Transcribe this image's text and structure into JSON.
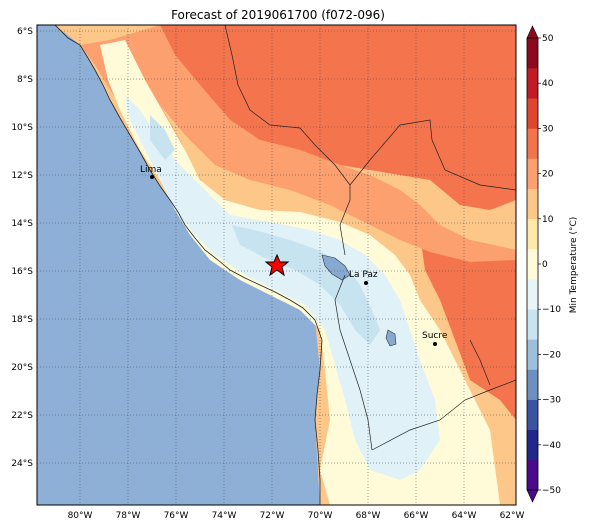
{
  "title": "Forecast of 2019061700 (f072-096)",
  "colorbar": {
    "label": "Min Temperature (°C)",
    "ticks": [
      "50",
      "40",
      "30",
      "20",
      "10",
      "0",
      "−10",
      "−20",
      "−30",
      "−40",
      "−50"
    ],
    "colors": [
      "#4a0a8b",
      "#22278a",
      "#3b53a3",
      "#6f8fc0",
      "#9dbfdc",
      "#c8e4f0",
      "#e8f5f7",
      "#fffbd9",
      "#fee9a9",
      "#fdc78a",
      "#fba06e",
      "#f3734d",
      "#e0462f",
      "#c21b27",
      "#8b0a20"
    ]
  },
  "lon_labels": [
    "80°W",
    "78°W",
    "76°W",
    "74°W",
    "72°W",
    "70°W",
    "68°W",
    "66°W",
    "64°W",
    "62°W"
  ],
  "lat_labels": [
    "6°S",
    "8°S",
    "10°S",
    "12°S",
    "14°S",
    "16°S",
    "18°S",
    "20°S",
    "22°S",
    "24°S"
  ],
  "cities": [
    {
      "name": "Lima"
    },
    {
      "name": "La Paz"
    },
    {
      "name": "Sucre"
    }
  ],
  "marker": {
    "icon": "red-star-icon",
    "color": "#ff0000"
  },
  "colors": {
    "ocean": "#8fb0d6",
    "very_warm": "#f4744d",
    "warm": "#fba06e",
    "mild": "#fdc78a",
    "cool": "#fffbd9",
    "cold": "#e0f2f7",
    "colder": "#c7e3f0",
    "lake": "#86a9d2"
  }
}
